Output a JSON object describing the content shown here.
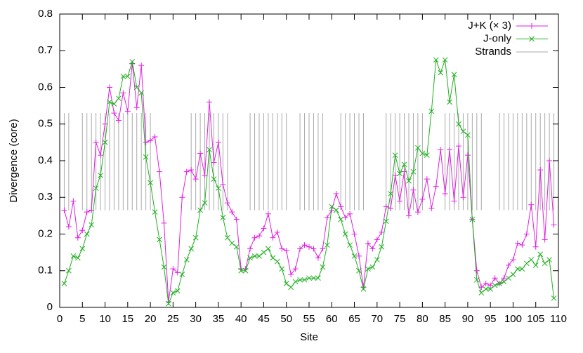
{
  "chart_data": {
    "type": "line",
    "xlabel": "Site",
    "ylabel": "Divergence (core)",
    "xlim": [
      0,
      110
    ],
    "ylim": [
      0,
      0.8
    ],
    "xticks": [
      0,
      5,
      10,
      15,
      20,
      25,
      30,
      35,
      40,
      45,
      50,
      55,
      60,
      65,
      70,
      75,
      80,
      85,
      90,
      95,
      100,
      105,
      110
    ],
    "yticks": [
      0,
      0.1,
      0.2,
      0.3,
      0.4,
      0.5,
      0.6,
      0.7,
      0.8
    ],
    "legend": "top-right",
    "x": [
      1,
      2,
      3,
      4,
      5,
      6,
      7,
      8,
      9,
      10,
      11,
      12,
      13,
      14,
      15,
      16,
      17,
      18,
      19,
      20,
      21,
      22,
      23,
      24,
      25,
      26,
      27,
      28,
      29,
      30,
      31,
      32,
      33,
      34,
      35,
      36,
      37,
      38,
      39,
      40,
      41,
      42,
      43,
      44,
      45,
      46,
      47,
      48,
      49,
      50,
      51,
      52,
      53,
      54,
      55,
      56,
      57,
      58,
      59,
      60,
      61,
      62,
      63,
      64,
      65,
      66,
      67,
      68,
      69,
      70,
      71,
      72,
      73,
      74,
      75,
      76,
      77,
      78,
      79,
      80,
      81,
      82,
      83,
      84,
      85,
      86,
      87,
      88,
      89,
      90,
      91,
      92,
      93,
      94,
      95,
      96,
      97,
      98,
      99,
      100,
      101,
      102,
      103,
      104,
      105,
      106,
      107,
      108,
      109
    ],
    "series": [
      {
        "name": "J+K (× 3)",
        "color": "#e020e0",
        "marker": "plus",
        "values": [
          0.265,
          0.22,
          0.29,
          0.19,
          0.21,
          0.26,
          0.265,
          0.45,
          0.415,
          0.5,
          0.6,
          0.53,
          0.51,
          0.585,
          0.535,
          0.665,
          0.545,
          0.66,
          0.45,
          0.455,
          0.465,
          0.37,
          0.23,
          0.015,
          0.105,
          0.095,
          0.3,
          0.37,
          0.375,
          0.35,
          0.42,
          0.36,
          0.56,
          0.395,
          0.45,
          0.335,
          0.285,
          0.26,
          0.24,
          0.105,
          0.105,
          0.16,
          0.19,
          0.195,
          0.215,
          0.255,
          0.19,
          0.205,
          0.16,
          0.155,
          0.09,
          0.105,
          0.16,
          0.17,
          0.165,
          0.16,
          0.135,
          0.16,
          0.245,
          0.265,
          0.31,
          0.275,
          0.245,
          0.255,
          0.2,
          0.14,
          0.055,
          0.175,
          0.16,
          0.185,
          0.205,
          0.275,
          0.27,
          0.36,
          0.29,
          0.37,
          0.25,
          0.32,
          0.26,
          0.295,
          0.35,
          0.27,
          0.33,
          0.43,
          0.31,
          0.43,
          0.29,
          0.44,
          0.3,
          0.415,
          0.24,
          0.1,
          0.055,
          0.065,
          0.06,
          0.08,
          0.065,
          0.08,
          0.115,
          0.13,
          0.175,
          0.17,
          0.2,
          0.28,
          0.165,
          0.375,
          0.185,
          0.4,
          0.225
        ]
      },
      {
        "name": "J-only",
        "color": "#20b020",
        "marker": "cross",
        "values": [
          0.065,
          0.1,
          0.14,
          0.135,
          0.16,
          0.2,
          0.225,
          0.325,
          0.36,
          0.45,
          0.56,
          0.555,
          0.57,
          0.63,
          0.63,
          0.67,
          0.6,
          0.585,
          0.41,
          0.34,
          0.26,
          0.185,
          0.11,
          0.01,
          0.04,
          0.045,
          0.09,
          0.13,
          0.16,
          0.19,
          0.265,
          0.285,
          0.43,
          0.35,
          0.325,
          0.245,
          0.19,
          0.175,
          0.165,
          0.1,
          0.1,
          0.135,
          0.14,
          0.14,
          0.15,
          0.16,
          0.135,
          0.125,
          0.105,
          0.065,
          0.055,
          0.07,
          0.075,
          0.075,
          0.08,
          0.08,
          0.08,
          0.11,
          0.17,
          0.275,
          0.265,
          0.24,
          0.2,
          0.17,
          0.14,
          0.1,
          0.05,
          0.105,
          0.11,
          0.13,
          0.165,
          0.235,
          0.31,
          0.415,
          0.365,
          0.39,
          0.345,
          0.37,
          0.435,
          0.42,
          0.415,
          0.535,
          0.675,
          0.64,
          0.675,
          0.56,
          0.635,
          0.5,
          0.48,
          0.47,
          0.24,
          0.075,
          0.04,
          0.05,
          0.05,
          0.06,
          0.065,
          0.07,
          0.08,
          0.09,
          0.105,
          0.105,
          0.12,
          0.13,
          0.115,
          0.145,
          0.12,
          0.13,
          0.025
        ]
      }
    ],
    "strands": {
      "name": "Strands",
      "color": "#aaaaaa",
      "y0": 0.265,
      "y1": 0.53,
      "x": [
        1,
        2,
        5,
        6,
        7,
        8,
        9,
        10,
        11,
        12,
        13,
        14,
        15,
        16,
        17,
        18,
        19,
        20,
        29,
        30,
        31,
        32,
        33,
        34,
        35,
        36,
        37,
        42,
        43,
        44,
        45,
        46,
        47,
        48,
        49,
        50,
        53,
        54,
        55,
        56,
        57,
        58,
        62,
        63,
        64,
        65,
        66,
        67,
        72,
        73,
        74,
        75,
        76,
        77,
        78,
        79,
        80,
        85,
        86,
        87,
        88,
        89,
        90,
        91,
        92,
        93,
        97,
        98,
        99,
        100,
        101,
        102,
        103,
        104,
        105,
        106,
        107,
        108,
        109
      ]
    }
  }
}
